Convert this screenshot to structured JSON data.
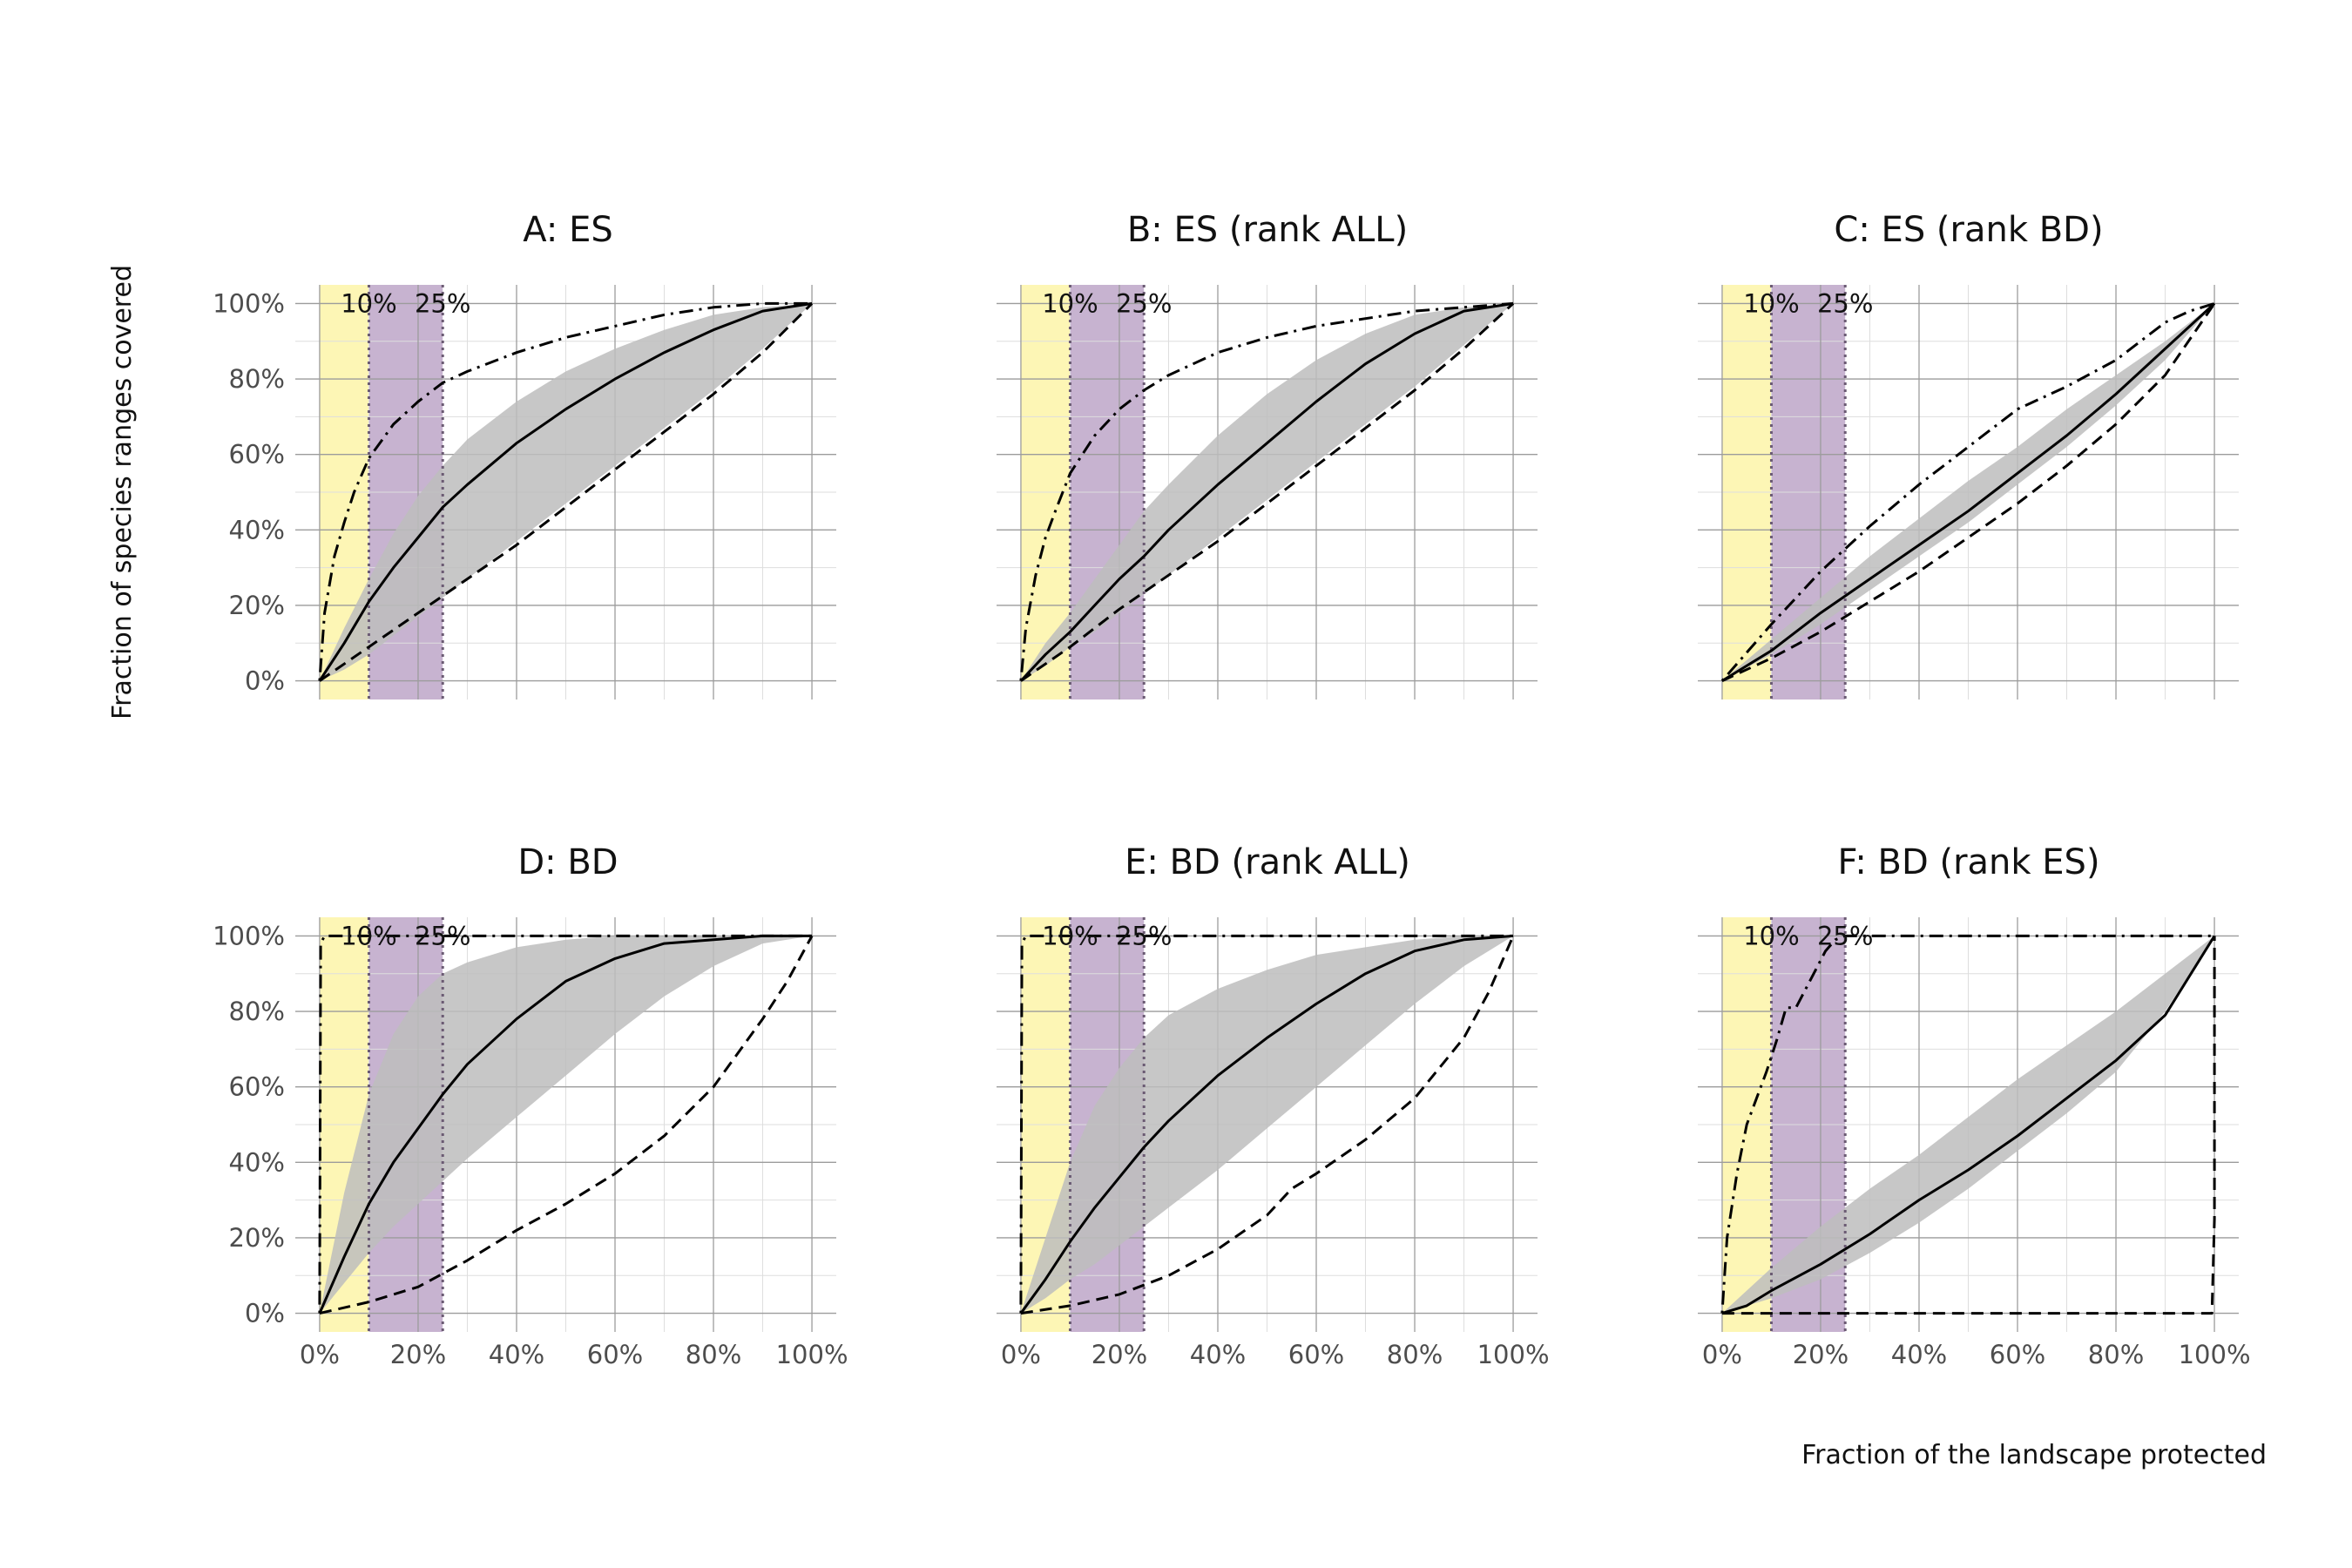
{
  "figure": {
    "ylabel": "Fraction of species ranges covered",
    "xlabel": "Fraction of the landscape protected"
  },
  "colors": {
    "band10": "#fdf6b5",
    "band25": "#c7b3d0",
    "ribbon": "#bdbdbd",
    "line": "#000000",
    "threshold": "#6b5b73"
  },
  "chart_data": [
    {
      "type": "line",
      "title": "A: ES",
      "xlim": [
        0,
        100
      ],
      "ylim": [
        0,
        100
      ],
      "x_ticks": [
        "0%",
        "20%",
        "40%",
        "60%",
        "80%",
        "100%"
      ],
      "y_ticks": [
        "0%",
        "20%",
        "40%",
        "60%",
        "80%",
        "100%"
      ],
      "threshold_labels": [
        "10%",
        "25%"
      ],
      "thresholds": [
        10,
        25
      ],
      "ribbon": {
        "x": [
          0,
          5,
          10,
          15,
          20,
          25,
          30,
          40,
          50,
          60,
          70,
          80,
          90,
          100
        ],
        "lower": [
          0,
          3,
          7,
          12,
          17,
          22,
          27,
          37,
          47,
          57,
          67,
          77,
          88,
          100
        ],
        "upper": [
          0,
          14,
          27,
          39,
          49,
          57,
          64,
          74,
          82,
          88,
          93,
          97,
          99,
          100
        ]
      },
      "series": [
        {
          "style": "solid",
          "x": [
            0,
            5,
            10,
            15,
            20,
            25,
            30,
            40,
            50,
            60,
            70,
            80,
            90,
            100
          ],
          "y": [
            0,
            10,
            21,
            30,
            38,
            46,
            52,
            63,
            72,
            80,
            87,
            93,
            98,
            100
          ]
        },
        {
          "style": "dashed",
          "x": [
            0,
            10,
            20,
            30,
            40,
            50,
            60,
            70,
            80,
            90,
            100
          ],
          "y": [
            0,
            9,
            18,
            27,
            36,
            46,
            56,
            66,
            76,
            87,
            100
          ]
        },
        {
          "style": "dotdash",
          "x": [
            0,
            1,
            3,
            5,
            7,
            10,
            15,
            20,
            25,
            30,
            40,
            50,
            60,
            70,
            80,
            90,
            100
          ],
          "y": [
            0,
            18,
            33,
            42,
            50,
            59,
            68,
            74,
            79,
            82,
            87,
            91,
            94,
            97,
            99,
            100,
            100
          ]
        }
      ]
    },
    {
      "type": "line",
      "title": "B: ES (rank ALL)",
      "xlim": [
        0,
        100
      ],
      "ylim": [
        0,
        100
      ],
      "x_ticks": [
        "0%",
        "20%",
        "40%",
        "60%",
        "80%",
        "100%"
      ],
      "y_ticks": [
        "0%",
        "20%",
        "40%",
        "60%",
        "80%",
        "100%"
      ],
      "threshold_labels": [
        "10%",
        "25%"
      ],
      "thresholds": [
        10,
        25
      ],
      "ribbon": {
        "x": [
          0,
          5,
          10,
          15,
          20,
          25,
          30,
          40,
          50,
          60,
          70,
          80,
          90,
          100
        ],
        "lower": [
          0,
          4,
          9,
          13,
          18,
          23,
          28,
          38,
          48,
          58,
          68,
          78,
          89,
          100
        ],
        "upper": [
          0,
          10,
          18,
          27,
          36,
          45,
          52,
          65,
          76,
          85,
          92,
          97,
          99,
          100
        ]
      },
      "series": [
        {
          "style": "solid",
          "x": [
            0,
            5,
            10,
            15,
            20,
            25,
            30,
            40,
            50,
            60,
            70,
            80,
            90,
            100
          ],
          "y": [
            0,
            7,
            13,
            20,
            27,
            33,
            40,
            52,
            63,
            74,
            84,
            92,
            98,
            100
          ]
        },
        {
          "style": "dashed",
          "x": [
            0,
            10,
            20,
            30,
            40,
            50,
            60,
            70,
            80,
            90,
            100
          ],
          "y": [
            0,
            9,
            19,
            28,
            37,
            47,
            57,
            67,
            77,
            88,
            100
          ]
        },
        {
          "style": "dotdash",
          "x": [
            0,
            1,
            3,
            5,
            7,
            10,
            15,
            20,
            25,
            30,
            40,
            50,
            60,
            70,
            80,
            90,
            100
          ],
          "y": [
            0,
            14,
            28,
            38,
            45,
            55,
            65,
            72,
            77,
            81,
            87,
            91,
            94,
            96,
            98,
            99,
            100
          ]
        }
      ]
    },
    {
      "type": "line",
      "title": "C: ES (rank BD)",
      "xlim": [
        0,
        100
      ],
      "ylim": [
        0,
        100
      ],
      "x_ticks": [
        "0%",
        "20%",
        "40%",
        "60%",
        "80%",
        "100%"
      ],
      "y_ticks": [
        "0%",
        "20%",
        "40%",
        "60%",
        "80%",
        "100%"
      ],
      "threshold_labels": [
        "10%",
        "25%"
      ],
      "thresholds": [
        10,
        25
      ],
      "ribbon": {
        "x": [
          0,
          10,
          20,
          30,
          40,
          50,
          60,
          70,
          80,
          90,
          100
        ],
        "lower": [
          0,
          7,
          15,
          24,
          33,
          42,
          52,
          62,
          73,
          85,
          100
        ],
        "upper": [
          0,
          11,
          22,
          33,
          43,
          53,
          62,
          72,
          81,
          90,
          100
        ]
      },
      "series": [
        {
          "style": "solid",
          "x": [
            0,
            10,
            20,
            30,
            40,
            50,
            55,
            60,
            70,
            80,
            90,
            100
          ],
          "y": [
            0,
            8,
            18,
            27,
            36,
            45,
            50,
            55,
            65,
            76,
            88,
            100
          ]
        },
        {
          "style": "dashed",
          "x": [
            0,
            10,
            20,
            30,
            40,
            50,
            60,
            70,
            80,
            90,
            100
          ],
          "y": [
            0,
            6,
            13,
            21,
            29,
            38,
            47,
            57,
            68,
            81,
            100
          ]
        },
        {
          "style": "dotdash",
          "x": [
            0,
            10,
            20,
            30,
            40,
            50,
            60,
            70,
            80,
            85,
            90,
            95,
            100
          ],
          "y": [
            0,
            15,
            29,
            41,
            52,
            62,
            72,
            78,
            85,
            90,
            95,
            98,
            100
          ]
        }
      ]
    },
    {
      "type": "line",
      "title": "D: BD",
      "xlim": [
        0,
        100
      ],
      "ylim": [
        0,
        100
      ],
      "x_ticks": [
        "0%",
        "20%",
        "40%",
        "60%",
        "80%",
        "100%"
      ],
      "y_ticks": [
        "0%",
        "20%",
        "40%",
        "60%",
        "80%",
        "100%"
      ],
      "threshold_labels": [
        "10%",
        "25%"
      ],
      "thresholds": [
        10,
        25
      ],
      "ribbon": {
        "x": [
          0,
          5,
          10,
          15,
          20,
          25,
          30,
          40,
          50,
          60,
          70,
          80,
          90,
          100
        ],
        "lower": [
          0,
          8,
          16,
          23,
          29,
          35,
          41,
          52,
          63,
          74,
          84,
          92,
          98,
          100
        ],
        "upper": [
          0,
          32,
          58,
          74,
          84,
          90,
          93,
          97,
          99,
          100,
          100,
          100,
          100,
          100
        ]
      },
      "series": [
        {
          "style": "solid",
          "x": [
            0,
            5,
            10,
            15,
            20,
            25,
            30,
            40,
            50,
            60,
            70,
            80,
            90,
            100
          ],
          "y": [
            0,
            15,
            29,
            40,
            49,
            58,
            66,
            78,
            88,
            94,
            98,
            99,
            100,
            100
          ]
        },
        {
          "style": "dashed",
          "x": [
            0,
            10,
            20,
            30,
            40,
            50,
            60,
            70,
            80,
            90,
            95,
            100
          ],
          "y": [
            0,
            3,
            7,
            14,
            22,
            29,
            37,
            47,
            60,
            78,
            88,
            100
          ]
        },
        {
          "style": "dotdash",
          "x": [
            0,
            0.2,
            1,
            5,
            10,
            20,
            30,
            40,
            50,
            60,
            70,
            80,
            90,
            100
          ],
          "y": [
            0,
            98,
            100,
            100,
            100,
            100,
            100,
            100,
            100,
            100,
            100,
            100,
            100,
            100
          ]
        }
      ]
    },
    {
      "type": "line",
      "title": "E: BD (rank ALL)",
      "xlim": [
        0,
        100
      ],
      "ylim": [
        0,
        100
      ],
      "x_ticks": [
        "0%",
        "20%",
        "40%",
        "60%",
        "80%",
        "100%"
      ],
      "y_ticks": [
        "0%",
        "20%",
        "40%",
        "60%",
        "80%",
        "100%"
      ],
      "threshold_labels": [
        "10%",
        "25%"
      ],
      "thresholds": [
        10,
        25
      ],
      "ribbon": {
        "x": [
          0,
          5,
          10,
          15,
          20,
          25,
          30,
          40,
          50,
          60,
          70,
          80,
          90,
          100
        ],
        "lower": [
          0,
          4,
          9,
          13,
          18,
          23,
          28,
          38,
          49,
          60,
          71,
          82,
          92,
          100
        ],
        "upper": [
          0,
          20,
          40,
          55,
          65,
          73,
          79,
          86,
          91,
          95,
          97,
          99,
          100,
          100
        ]
      },
      "series": [
        {
          "style": "solid",
          "x": [
            0,
            5,
            10,
            15,
            20,
            25,
            30,
            40,
            50,
            60,
            70,
            80,
            90,
            100
          ],
          "y": [
            0,
            9,
            19,
            28,
            36,
            44,
            51,
            63,
            73,
            82,
            90,
            96,
            99,
            100
          ]
        },
        {
          "style": "dashed",
          "x": [
            0,
            10,
            20,
            30,
            40,
            50,
            55,
            60,
            70,
            80,
            90,
            95,
            100
          ],
          "y": [
            0,
            2,
            5,
            10,
            17,
            26,
            33,
            37,
            46,
            57,
            73,
            85,
            100
          ]
        },
        {
          "style": "dotdash",
          "x": [
            0,
            0.2,
            1,
            5,
            10,
            20,
            30,
            40,
            50,
            60,
            70,
            80,
            90,
            100
          ],
          "y": [
            0,
            98,
            100,
            100,
            100,
            100,
            100,
            100,
            100,
            100,
            100,
            100,
            100,
            100
          ]
        }
      ]
    },
    {
      "type": "line",
      "title": "F: BD (rank ES)",
      "xlim": [
        0,
        100
      ],
      "ylim": [
        0,
        100
      ],
      "x_ticks": [
        "0%",
        "20%",
        "40%",
        "60%",
        "80%",
        "100%"
      ],
      "y_ticks": [
        "0%",
        "20%",
        "40%",
        "60%",
        "80%",
        "100%"
      ],
      "threshold_labels": [
        "10%",
        "25%"
      ],
      "thresholds": [
        10,
        25
      ],
      "ribbon": {
        "x": [
          0,
          10,
          20,
          30,
          40,
          50,
          60,
          70,
          80,
          90,
          100
        ],
        "lower": [
          0,
          4,
          9,
          16,
          24,
          33,
          43,
          53,
          64,
          80,
          100
        ],
        "upper": [
          0,
          12,
          23,
          33,
          42,
          52,
          62,
          71,
          80,
          90,
          100
        ]
      },
      "series": [
        {
          "style": "solid",
          "x": [
            0,
            5,
            10,
            20,
            30,
            40,
            50,
            60,
            70,
            80,
            90,
            100
          ],
          "y": [
            0,
            2,
            6,
            13,
            21,
            30,
            38,
            47,
            57,
            67,
            79,
            100
          ]
        },
        {
          "style": "dashed",
          "x": [
            0,
            99.5,
            100,
            100
          ],
          "y": [
            0,
            0,
            25,
            100
          ]
        },
        {
          "style": "dotdash",
          "x": [
            0,
            1,
            3,
            5,
            7,
            9,
            11,
            13,
            15,
            17,
            19,
            21,
            23,
            25,
            30,
            40,
            50,
            60,
            70,
            80,
            90,
            100
          ],
          "y": [
            0,
            20,
            37,
            50,
            57,
            64,
            72,
            81,
            81,
            86,
            91,
            96,
            99,
            100,
            100,
            100,
            100,
            100,
            100,
            100,
            100,
            100
          ]
        }
      ]
    }
  ]
}
